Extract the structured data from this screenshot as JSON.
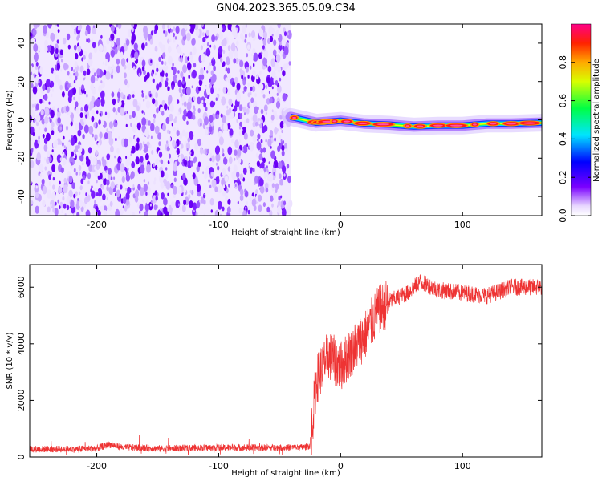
{
  "title": "GN04.2023.365.05.09.C34",
  "chart_data": [
    {
      "type": "heatmap",
      "xlabel": "Height of straight line (km)",
      "ylabel": "Frequency (Hz)",
      "xlim": [
        -255,
        165
      ],
      "ylim": [
        -50,
        50
      ],
      "x_ticks": [
        -200,
        -100,
        0,
        100
      ],
      "y_ticks": [
        -40,
        -20,
        0,
        20,
        40
      ],
      "noise_region_x": [
        -255,
        -41
      ],
      "signal_start_x": -41,
      "signal_track": [
        {
          "x": -41,
          "f": 1.5
        },
        {
          "x": -20,
          "f": -1.5
        },
        {
          "x": 0,
          "f": -0.5
        },
        {
          "x": 20,
          "f": -2
        },
        {
          "x": 40,
          "f": -2.5
        },
        {
          "x": 60,
          "f": -3.5
        },
        {
          "x": 80,
          "f": -3
        },
        {
          "x": 100,
          "f": -3
        },
        {
          "x": 120,
          "f": -2
        },
        {
          "x": 140,
          "f": -2
        },
        {
          "x": 165,
          "f": -1.5
        }
      ],
      "colorbar": {
        "label": "Normalized spectral amplitude",
        "range": [
          0,
          1
        ],
        "ticks": [
          0.0,
          0.2,
          0.4,
          0.6,
          0.8
        ]
      }
    },
    {
      "type": "line",
      "xlabel": "Height of straight line (km)",
      "ylabel": "SNR (10 * v/v)",
      "xlim": [
        -255,
        165
      ],
      "ylim": [
        0,
        6800
      ],
      "x_ticks": [
        -200,
        -100,
        0,
        100
      ],
      "y_ticks": [
        0,
        2000,
        4000,
        6000
      ],
      "color": "#ee3333",
      "series_profile": [
        {
          "x": -255,
          "y": 280
        },
        {
          "x": -220,
          "y": 280
        },
        {
          "x": -200,
          "y": 300
        },
        {
          "x": -190,
          "y": 450
        },
        {
          "x": -180,
          "y": 350
        },
        {
          "x": -150,
          "y": 300
        },
        {
          "x": -100,
          "y": 330
        },
        {
          "x": -60,
          "y": 330
        },
        {
          "x": -30,
          "y": 340
        },
        {
          "x": -25,
          "y": 400
        },
        {
          "x": -20,
          "y": 2700
        },
        {
          "x": -15,
          "y": 3200
        },
        {
          "x": -10,
          "y": 3600
        },
        {
          "x": 0,
          "y": 3200
        },
        {
          "x": 10,
          "y": 3800
        },
        {
          "x": 20,
          "y": 4300
        },
        {
          "x": 30,
          "y": 5100
        },
        {
          "x": 40,
          "y": 5500
        },
        {
          "x": 55,
          "y": 5800
        },
        {
          "x": 65,
          "y": 6200
        },
        {
          "x": 80,
          "y": 5900
        },
        {
          "x": 100,
          "y": 5800
        },
        {
          "x": 120,
          "y": 5700
        },
        {
          "x": 140,
          "y": 6000
        },
        {
          "x": 165,
          "y": 6000
        }
      ]
    }
  ]
}
